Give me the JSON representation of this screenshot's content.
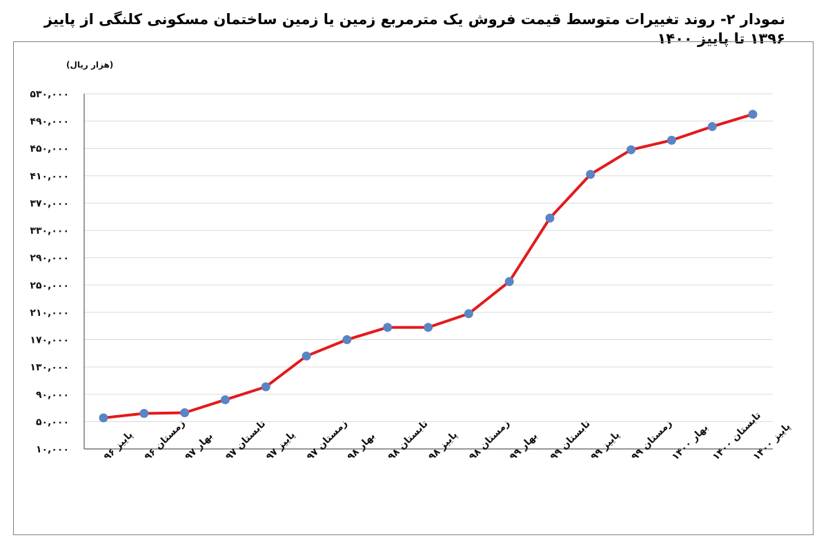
{
  "chart_title": "نمودار ۲- روند تغییرات متوسط قیمت فروش یک مترمربع زمین یا زمین ساختمان مسکونی کلنگی از پاییز ۱۳۹۶ تا پاییز ۱۴۰۰",
  "chart_data": {
    "type": "line",
    "title": "نمودار ۲- روند تغییرات متوسط قیمت فروش یک مترمربع زمین یا زمین ساختمان مسکونی کلنگی از پاییز ۱۳۹۶ تا پاییز ۱۴۰۰",
    "unit_label": "(هزار ریال)",
    "xlabel": "",
    "ylabel": "",
    "ylim": [
      10000,
      530000
    ],
    "yticks": [
      10000,
      50000,
      90000,
      130000,
      170000,
      210000,
      250000,
      290000,
      330000,
      370000,
      410000,
      450000,
      490000,
      530000
    ],
    "ytick_labels": [
      "۱۰,۰۰۰",
      "۵۰,۰۰۰",
      "۹۰,۰۰۰",
      "۱۳۰,۰۰۰",
      "۱۷۰,۰۰۰",
      "۲۱۰,۰۰۰",
      "۲۵۰,۰۰۰",
      "۲۹۰,۰۰۰",
      "۳۳۰,۰۰۰",
      "۳۷۰,۰۰۰",
      "۴۱۰,۰۰۰",
      "۴۵۰,۰۰۰",
      "۴۹۰,۰۰۰",
      "۵۳۰,۰۰۰"
    ],
    "categories": [
      "پاییز ۹۶",
      "زمستان ۹۶",
      "بهار ۹۷",
      "تابستان ۹۷",
      "پاییز ۹۷",
      "زمستان ۹۷",
      "بهار ۹۸",
      "تابستان ۹۸",
      "پاییز ۹۸",
      "زمستان ۹۸",
      "بهار ۹۹",
      "تابستان ۹۹",
      "پاییز ۹۹",
      "زمستان ۹۹",
      "بهار ۱۴۰۰",
      "تابستان ۱۴۰۰",
      "پاییز ۱۴۰۰"
    ],
    "series": [
      {
        "values": [
          55500,
          62000,
          63000,
          82000,
          101000,
          146000,
          170000,
          188000,
          188000,
          208000,
          255000,
          348000,
          412000,
          448000,
          462000,
          482000,
          500000
        ]
      }
    ],
    "grid": true,
    "legend": "none",
    "line_color": "#e31a1c",
    "marker_color": "#5b84c4",
    "gridline_color": "#d9d9d9"
  }
}
